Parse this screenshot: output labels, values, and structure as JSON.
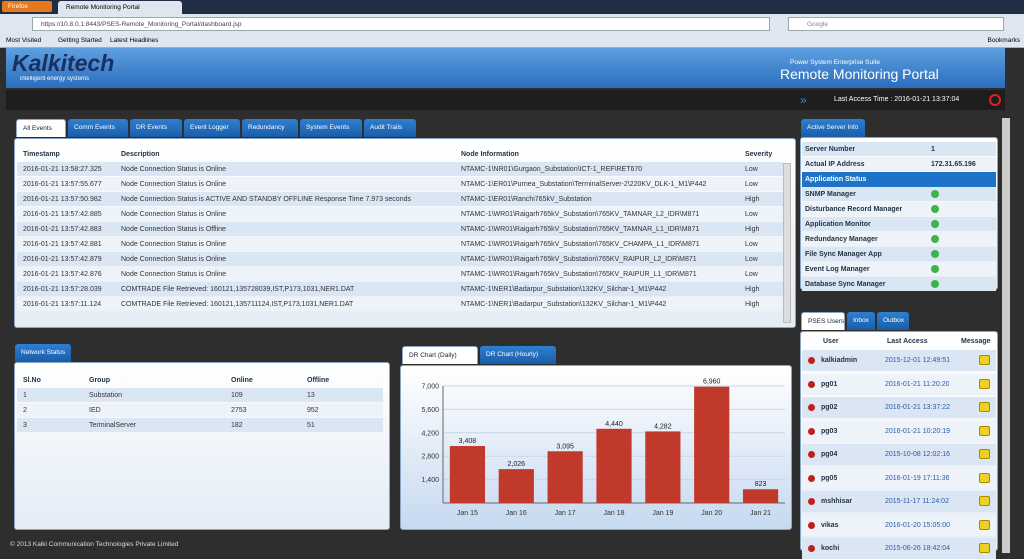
{
  "browser": {
    "menu": "Firefox",
    "tab": "Remote Monitoring Portal",
    "url": "https://10.8.0.1:8443/PSES-Remote_Monitoring_Portal/dashboard.jsp",
    "search": "Google",
    "bookmarks": [
      "Most Visited",
      "Getting Started",
      "Latest Headlines"
    ],
    "bookmarks_menu": "Bookmarks"
  },
  "header": {
    "logo": "Kalkitech",
    "tagline": "intelligent energy systems",
    "suite": "Power System Enterprise Suite",
    "title": "Remote Monitoring Portal",
    "access_time": "Last Access Time : 2016-01-21 13:37:04"
  },
  "events": {
    "tabs": [
      "All Events",
      "Comm Events",
      "DR Events",
      "Event Logger",
      "Redundancy",
      "System Events",
      "Audit Trails"
    ],
    "columns": [
      "Timestamp",
      "Description",
      "Node Information",
      "Severity"
    ],
    "rows": [
      [
        "2016-01-21 13:58:27.325",
        "Node Connection Status is Online",
        "NTAMC-1\\NR01\\Gurgaon_Substation\\ICT-1_REF\\RET670",
        "Low"
      ],
      [
        "2016-01-21 13:57:55.677",
        "Node Connection Status is Online",
        "NTAMC-1\\ER01\\Purnea_Substation\\TerminalServer-2\\220KV_DLK-1_M1\\P442",
        "Low"
      ],
      [
        "2016-01-21 13:57:50.982",
        "Node Connection Status is ACTIVE AND STANDBY OFFLINE Response Time 7.973 seconds",
        "NTAMC-1\\ER01\\Ranchi765kV_Substation",
        "High"
      ],
      [
        "2016-01-21 13:57:42.885",
        "Node Connection Status is Online",
        "NTAMC-1\\WR01\\Raigarh765kV_Substation\\765KV_TAMNAR_L2_IDR\\M871",
        "Low"
      ],
      [
        "2016-01-21 13:57:42.883",
        "Node Connection Status is Offline",
        "NTAMC-1\\WR01\\Raigarh765kV_Substation\\765KV_TAMNAR_L1_IDR\\M871",
        "High"
      ],
      [
        "2016-01-21 13:57:42.881",
        "Node Connection Status is Online",
        "NTAMC-1\\WR01\\Raigarh765kV_Substation\\765KV_CHAMPA_L1_IDR\\M871",
        "Low"
      ],
      [
        "2016-01-21 13:57:42.879",
        "Node Connection Status is Online",
        "NTAMC-1\\WR01\\Raigarh765kV_Substation\\765KV_RAIPUR_L2_IDR\\M871",
        "Low"
      ],
      [
        "2016-01-21 13:57:42.876",
        "Node Connection Status is Online",
        "NTAMC-1\\WR01\\Raigarh765kV_Substation\\765KV_RAIPUR_L1_IDR\\M871",
        "Low"
      ],
      [
        "2016-01-21 13:57:28.039",
        "COMTRADE File Retrieved: 160121,135728039,IST,P173,1031,NER1.DAT",
        "NTAMC-1\\NER1\\Badarpur_Substation\\132KV_Silchar-1_M1\\P442",
        "High"
      ],
      [
        "2016-01-21 13:57:11.124",
        "COMTRADE File Retrieved: 160121,135711124,IST,P173,1031,NER1.DAT",
        "NTAMC-1\\NER1\\Badarpur_Substation\\132KV_Silchar-1_M1\\P442",
        "High"
      ]
    ]
  },
  "server": {
    "tab": "Active Server Info",
    "rows": [
      [
        "Server Number",
        "1"
      ],
      [
        "Actual IP Address",
        "172.31.65.196"
      ]
    ],
    "status_header": "Application Status",
    "services": [
      "SNMP Manager",
      "Disturbance Record Manager",
      "Application Monitor",
      "Redundancy Manager",
      "File Sync Manager App",
      "Event Log Manager",
      "Database Sync Manager"
    ]
  },
  "network": {
    "tab": "Network Status",
    "columns": [
      "Sl.No",
      "Group",
      "Online",
      "Offline"
    ],
    "rows": [
      [
        "1",
        "Substation",
        "109",
        "13"
      ],
      [
        "2",
        "IED",
        "2753",
        "952"
      ],
      [
        "3",
        "TerminalServer",
        "182",
        "51"
      ]
    ]
  },
  "dr_tabs": [
    "DR Chart (Daily)",
    "DR Chart (Hourly)"
  ],
  "chart_data": {
    "type": "bar",
    "categories": [
      "Jan 15",
      "Jan 16",
      "Jan 17",
      "Jan 18",
      "Jan 19",
      "Jan 20",
      "Jan 21"
    ],
    "values": [
      3408,
      2026,
      3095,
      4440,
      4282,
      6960,
      823
    ],
    "value_labels": [
      "3,408",
      "2,026",
      "3,095",
      "4,440",
      "4,282",
      "6,960",
      "823"
    ],
    "color": "#c0392b",
    "ylim": [
      0,
      7000
    ],
    "yticks": [
      {
        "value": 1400,
        "label": "1,400"
      },
      {
        "value": 2800,
        "label": "2,800"
      },
      {
        "value": 4200,
        "label": "4,200"
      },
      {
        "value": 5600,
        "label": "5,600"
      },
      {
        "value": 7000,
        "label": "7,000"
      }
    ],
    "grid": true
  },
  "users": {
    "tabs": [
      "PSES Users",
      "Inbox",
      "Outbox"
    ],
    "columns": [
      "User",
      "Last Access",
      "Message"
    ],
    "rows": [
      [
        "kalkiadmin",
        "2015-12-01 12:49:51"
      ],
      [
        "pg01",
        "2016-01-21 11:20:20"
      ],
      [
        "pg02",
        "2016-01-21 13:37:22"
      ],
      [
        "pg03",
        "2016-01-21 10:20:19"
      ],
      [
        "pg04",
        "2015-10-08 12:02:16"
      ],
      [
        "pg05",
        "2016-01-19 17:11:36"
      ],
      [
        "mshhisar",
        "2015-11-17 11:24:02"
      ],
      [
        "vikas",
        "2016-01-20 15:05:00"
      ],
      [
        "kochi",
        "2015-06-26 18:42:04"
      ]
    ]
  },
  "footer": "© 2013 Kalki Communication Technologies Private Limited"
}
